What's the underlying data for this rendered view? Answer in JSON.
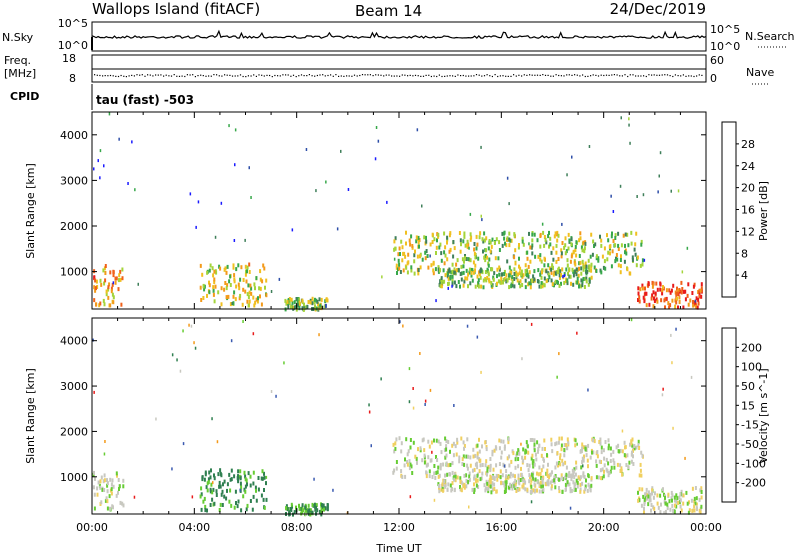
{
  "header": {
    "title": "Wallops Island (fitACF)",
    "beam": "Beam 14",
    "date": "24/Dec/2019"
  },
  "strips": {
    "nsky_label": "N.Sky",
    "nsky_ticks": [
      "10^5",
      "10^0"
    ],
    "nsky_right_ticks": [
      "10^5",
      "10^0"
    ],
    "nsearch_label": "N.Search",
    "freq_label": "Freq.",
    "freq_unit": "[MHz]",
    "freq_ticks": [
      "18",
      "8"
    ],
    "nave_label": "Nave",
    "nave_ticks": [
      "60",
      "0"
    ],
    "cpid_label": "CPID",
    "cpid_value": "tau (fast) -503"
  },
  "colors": {
    "power": [
      "#1a1aff",
      "#2d4ea8",
      "#3f7f5a",
      "#37a84a",
      "#a4d43a",
      "#f0c020",
      "#f39a1a",
      "#f0601a",
      "#e81a1a"
    ],
    "velocity": [
      "#1a1ab0",
      "#3a5ab0",
      "#2f7f50",
      "#66cc33",
      "#c8c8c0",
      "#f0d060",
      "#f39a1a",
      "#f06a1a",
      "#e81a1a"
    ]
  },
  "chart_data": [
    {
      "type": "heatmap",
      "name": "power-panel",
      "xlabel": "",
      "ylabel": "Slant Range [km]",
      "x_range": [
        "00:00",
        "00:00"
      ],
      "x_range_hours": [
        0,
        24
      ],
      "ylim": [
        180,
        4500
      ],
      "y_ticks": [
        "1000",
        "2000",
        "3000",
        "4000"
      ],
      "colorbar_label": "Power [dB]",
      "colorbar_ticks": [
        "4",
        "8",
        "12",
        "16",
        "20",
        "24",
        "28"
      ],
      "colorbar_range": [
        0,
        32
      ],
      "echo_regions": [
        {
          "t": [
            0.0,
            1.2
          ],
          "r": [
            300,
            1200
          ],
          "level": 22
        },
        {
          "t": [
            4.2,
            6.8
          ],
          "r": [
            300,
            1200
          ],
          "level": 18
        },
        {
          "t": [
            7.5,
            9.2
          ],
          "r": [
            200,
            450
          ],
          "level": 14
        },
        {
          "t": [
            11.7,
            15.2
          ],
          "r": [
            1000,
            1900
          ],
          "level": 16
        },
        {
          "t": [
            15.2,
            21.5
          ],
          "r": [
            1000,
            1900
          ],
          "level": 16
        },
        {
          "t": [
            13.5,
            19.5
          ],
          "r": [
            700,
            1100
          ],
          "level": 14
        },
        {
          "t": [
            21.3,
            23.8
          ],
          "r": [
            250,
            800
          ],
          "level": 28
        }
      ]
    },
    {
      "type": "heatmap",
      "name": "velocity-panel",
      "xlabel": "Time UT",
      "ylabel": "Slant Range [km]",
      "x_range": [
        "00:00",
        "00:00"
      ],
      "x_range_hours": [
        0,
        24
      ],
      "x_ticks": [
        "00:00",
        "04:00",
        "08:00",
        "12:00",
        "16:00",
        "20:00",
        "00:00"
      ],
      "ylim": [
        180,
        4500
      ],
      "y_ticks": [
        "1000",
        "2000",
        "3000",
        "4000"
      ],
      "colorbar_label": "Velocity [m s^-1]",
      "colorbar_ticks": [
        "200",
        "100",
        "50",
        "15",
        "-15",
        "-50",
        "-100",
        "-200"
      ],
      "colorbar_range": [
        -250,
        250
      ],
      "echo_regions": [
        {
          "t": [
            0.0,
            1.2
          ],
          "r": [
            300,
            1200
          ],
          "v": 0
        },
        {
          "t": [
            4.2,
            6.8
          ],
          "r": [
            300,
            1200
          ],
          "v": 60
        },
        {
          "t": [
            7.5,
            9.2
          ],
          "r": [
            200,
            450
          ],
          "v": 60
        },
        {
          "t": [
            11.7,
            21.5
          ],
          "r": [
            1000,
            1900
          ],
          "v": 0
        },
        {
          "t": [
            13.5,
            19.5
          ],
          "r": [
            700,
            1100
          ],
          "v": 0
        },
        {
          "t": [
            21.3,
            23.8
          ],
          "r": [
            250,
            800
          ],
          "v": 0
        }
      ]
    }
  ]
}
